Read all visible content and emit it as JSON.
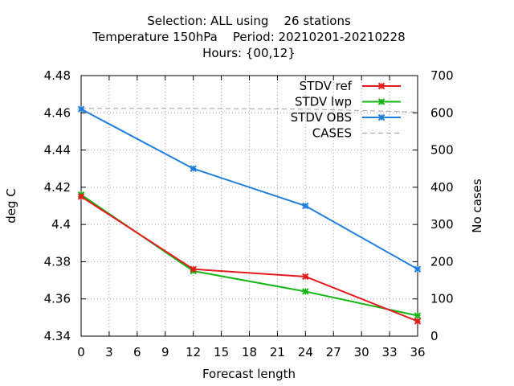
{
  "chart_data": {
    "type": "line",
    "title_lines": [
      "Selection: ALL using    26 stations",
      "Temperature 150hPa    Period: 20210201-20210228",
      "Hours: {00,12}"
    ],
    "xlabel": "Forecast length",
    "ylabel": "deg C",
    "y2label": "No cases",
    "xlim": [
      0,
      36
    ],
    "xticks": [
      0,
      3,
      6,
      9,
      12,
      15,
      18,
      21,
      24,
      27,
      30,
      33,
      36
    ],
    "ylim": [
      4.34,
      4.48
    ],
    "yticks": [
      "4.34",
      "4.36",
      "4.38",
      "4.4",
      "4.42",
      "4.44",
      "4.46",
      "4.48"
    ],
    "y2lim": [
      0,
      700
    ],
    "y2ticks": [
      0,
      100,
      200,
      300,
      400,
      500,
      600,
      700
    ],
    "grid": true,
    "legend_position": "top-right",
    "series": [
      {
        "name": "STDV ref",
        "color": "#e41a1c",
        "axis": "y",
        "dashed": false,
        "markers": true,
        "x": [
          0,
          12,
          24,
          36
        ],
        "y": [
          4.415,
          4.376,
          4.372,
          4.348
        ]
      },
      {
        "name": "STDV lwp",
        "color": "#17b617",
        "axis": "y",
        "dashed": false,
        "markers": true,
        "x": [
          0,
          12,
          24,
          36
        ],
        "y": [
          4.416,
          4.375,
          4.364,
          4.351
        ]
      },
      {
        "name": "STDV OBS",
        "color": "#1f7fdf",
        "axis": "y",
        "dashed": false,
        "markers": true,
        "x": [
          0,
          12,
          24,
          36
        ],
        "y": [
          4.462,
          4.43,
          4.41,
          4.376
        ]
      },
      {
        "name": "CASES",
        "color": "#a0a0a0",
        "axis": "y2",
        "dashed": true,
        "markers": false,
        "x": [
          0,
          12,
          24,
          36
        ],
        "y": [
          612,
          612,
          610,
          602
        ]
      }
    ]
  }
}
